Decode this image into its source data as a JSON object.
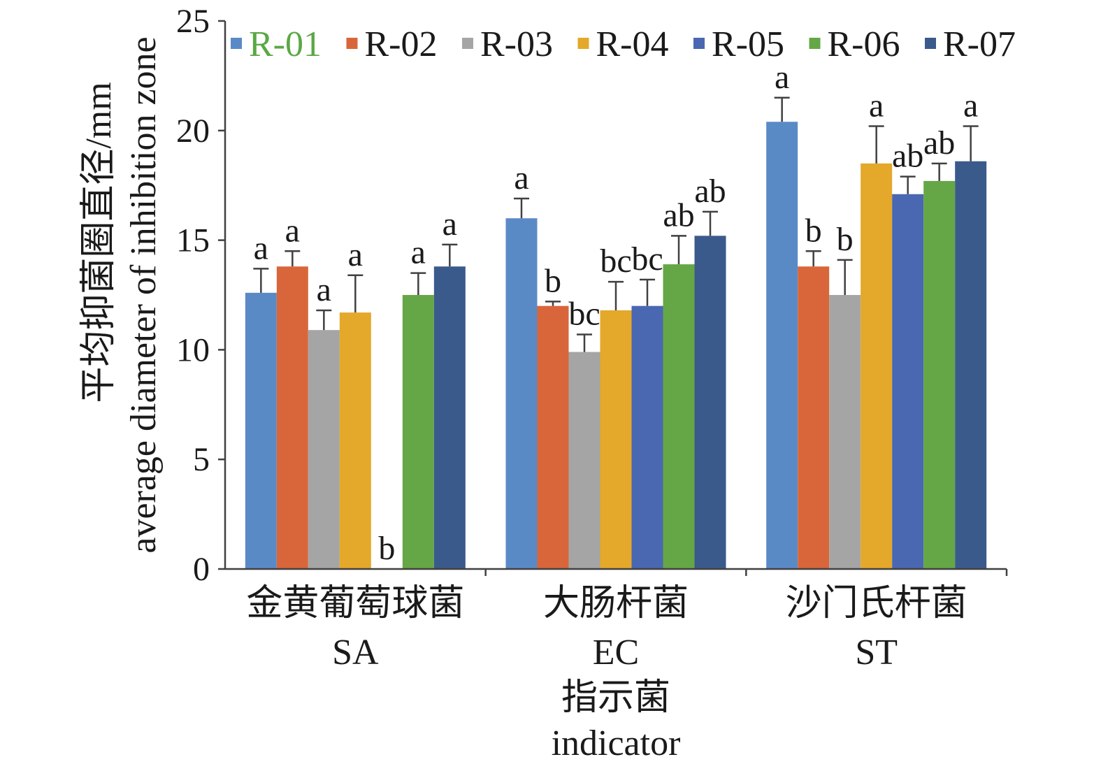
{
  "chart_data": {
    "type": "bar",
    "categories": [
      "SA",
      "EC",
      "ST"
    ],
    "categories_cn": [
      "金黄葡萄球菌",
      "大肠杆菌",
      "沙门氏杆菌"
    ],
    "xlabel": [
      "指示菌",
      "indicator"
    ],
    "ylabel": [
      "平均抑菌圈直径/mm",
      "average diameter of inhibition zone"
    ],
    "ylim": [
      0,
      25
    ],
    "yticks": [
      0,
      5,
      10,
      15,
      20,
      25
    ],
    "grid": false,
    "legend": "top",
    "error_bars": "upper",
    "series": [
      {
        "name": "R-01",
        "color": "#5a8ac6",
        "label_color": "#5aa845",
        "values": [
          12.6,
          16.0,
          20.4
        ],
        "errors": [
          1.1,
          0.9,
          1.1
        ],
        "letters": [
          "a",
          "a",
          "a"
        ]
      },
      {
        "name": "R-02",
        "color": "#d9663a",
        "label_color": "#1a1a1a",
        "values": [
          13.8,
          12.0,
          13.8
        ],
        "errors": [
          0.7,
          0.2,
          0.7
        ],
        "letters": [
          "a",
          "b",
          "b"
        ]
      },
      {
        "name": "R-03",
        "color": "#a5a5a5",
        "label_color": "#1a1a1a",
        "values": [
          10.9,
          9.9,
          12.5
        ],
        "errors": [
          0.9,
          0.8,
          1.6
        ],
        "letters": [
          "a",
          "bc",
          "b"
        ]
      },
      {
        "name": "R-04",
        "color": "#e4a82a",
        "label_color": "#1a1a1a",
        "values": [
          11.7,
          11.8,
          18.5
        ],
        "errors": [
          1.7,
          1.3,
          1.7
        ],
        "letters": [
          "a",
          "bc",
          "a"
        ]
      },
      {
        "name": "R-05",
        "color": "#4a67b1",
        "label_color": "#1a1a1a",
        "values": [
          0,
          12.0,
          17.1
        ],
        "errors": [
          0,
          1.2,
          0.8
        ],
        "letters": [
          "b",
          "bc",
          "ab"
        ]
      },
      {
        "name": "R-06",
        "color": "#65a746",
        "label_color": "#1a1a1a",
        "values": [
          12.5,
          13.9,
          17.7
        ],
        "errors": [
          1.0,
          1.3,
          0.8
        ],
        "letters": [
          "a",
          "ab",
          "ab"
        ]
      },
      {
        "name": "R-07",
        "color": "#3b5a8c",
        "label_color": "#1a1a1a",
        "values": [
          13.8,
          15.2,
          18.6
        ],
        "errors": [
          1.0,
          1.1,
          1.6
        ],
        "letters": [
          "a",
          "ab",
          "a"
        ]
      }
    ]
  }
}
